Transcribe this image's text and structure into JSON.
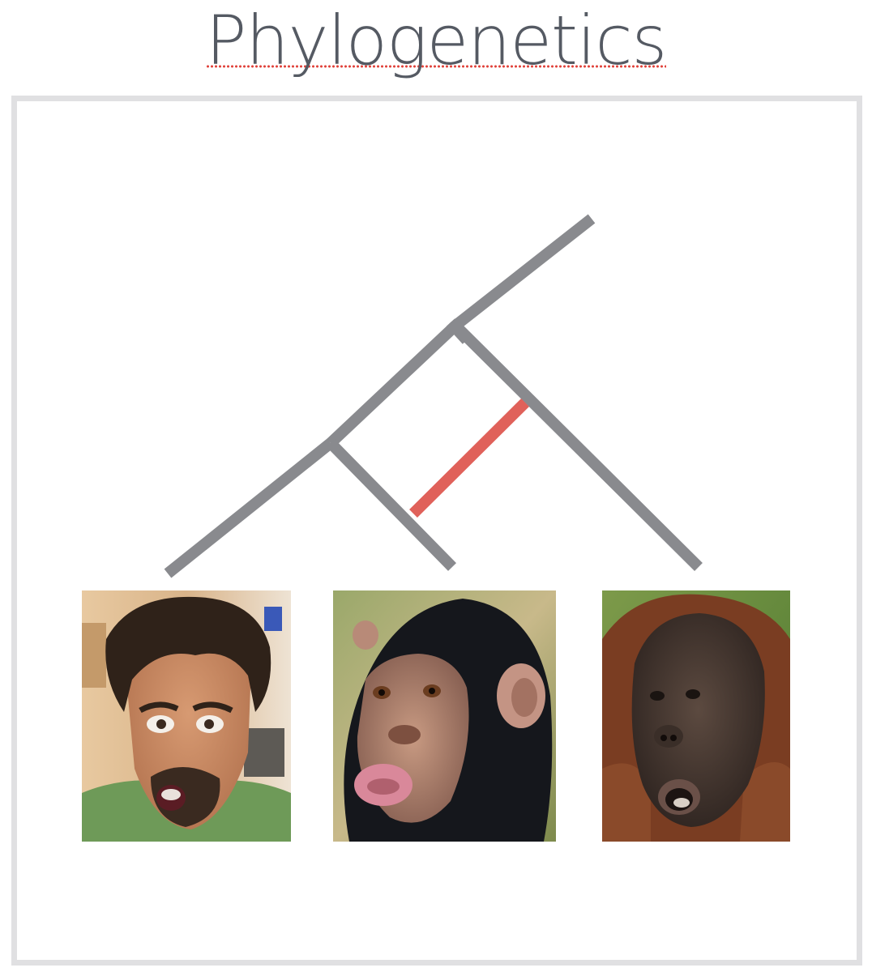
{
  "title": "Phylogenetics",
  "colors": {
    "title_text": "#555a63",
    "spellcheck_underline": "#e0413a",
    "frame_border": "#e0e0e2",
    "tree_branch": "#898a8e",
    "highlight_branch": "#e0615a"
  },
  "tree": {
    "leaves": [
      "human",
      "chimpanzee",
      "orangutan"
    ],
    "highlighted_branch": "chimpanzee"
  },
  "images": {
    "human": "surprised-man-photo",
    "chimpanzee": "chimpanzee-photo",
    "orangutan": "orangutan-photo"
  }
}
